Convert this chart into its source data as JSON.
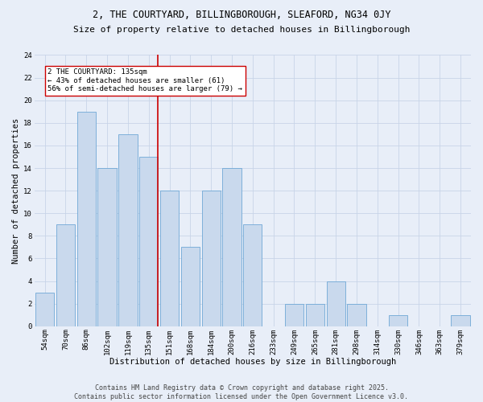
{
  "title_line1": "2, THE COURTYARD, BILLINGBOROUGH, SLEAFORD, NG34 0JY",
  "title_line2": "Size of property relative to detached houses in Billingborough",
  "xlabel": "Distribution of detached houses by size in Billingborough",
  "ylabel": "Number of detached properties",
  "categories": [
    "54sqm",
    "70sqm",
    "86sqm",
    "102sqm",
    "119sqm",
    "135sqm",
    "151sqm",
    "168sqm",
    "184sqm",
    "200sqm",
    "216sqm",
    "233sqm",
    "249sqm",
    "265sqm",
    "281sqm",
    "298sqm",
    "314sqm",
    "330sqm",
    "346sqm",
    "363sqm",
    "379sqm"
  ],
  "values": [
    3,
    9,
    19,
    14,
    17,
    15,
    12,
    7,
    12,
    14,
    9,
    0,
    2,
    2,
    4,
    2,
    0,
    1,
    0,
    0,
    1
  ],
  "bar_color": "#c9d9ed",
  "bar_edge_color": "#6fa8d6",
  "highlight_idx": 5,
  "highlight_color": "#cc0000",
  "annotation_text": "2 THE COURTYARD: 135sqm\n← 43% of detached houses are smaller (61)\n56% of semi-detached houses are larger (79) →",
  "annotation_box_color": "#ffffff",
  "annotation_box_edge": "#cc0000",
  "ylim": [
    0,
    24
  ],
  "yticks": [
    0,
    2,
    4,
    6,
    8,
    10,
    12,
    14,
    16,
    18,
    20,
    22,
    24
  ],
  "grid_color": "#c8d4e8",
  "background_color": "#e8eef8",
  "footer_text": "Contains HM Land Registry data © Crown copyright and database right 2025.\nContains public sector information licensed under the Open Government Licence v3.0.",
  "title1_fontsize": 8.5,
  "title2_fontsize": 8,
  "axis_label_fontsize": 7.5,
  "tick_fontsize": 6.5,
  "annotation_fontsize": 6.5,
  "footer_fontsize": 6
}
